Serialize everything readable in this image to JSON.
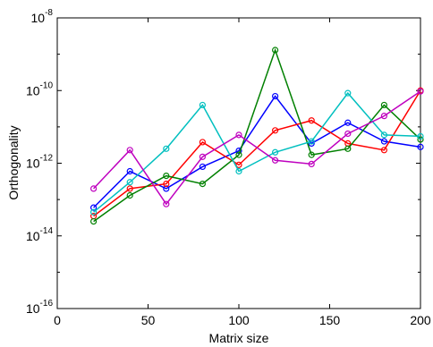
{
  "chart_data": {
    "type": "line",
    "title": "",
    "xlabel": "Matrix size",
    "ylabel": "Orthogonality",
    "xlim": [
      0,
      200
    ],
    "ylim_exponent": [
      -16,
      -8
    ],
    "yscale": "log",
    "grid": false,
    "legend": "none",
    "x_ticks": [
      "0",
      "50",
      "100",
      "150",
      "200"
    ],
    "y_ticks": [
      {
        "base": "10",
        "exp": "-16"
      },
      {
        "base": "10",
        "exp": "-14"
      },
      {
        "base": "10",
        "exp": "-12"
      },
      {
        "base": "10",
        "exp": "-10"
      },
      {
        "base": "10",
        "exp": "-8"
      }
    ],
    "x": [
      20,
      40,
      60,
      80,
      100,
      120,
      140,
      160,
      180,
      200
    ],
    "series": [
      {
        "color": "#0000ff",
        "values": [
          6e-14,
          6e-13,
          2e-13,
          8e-13,
          2.2e-12,
          7e-11,
          3.5e-12,
          1.3e-11,
          4e-12,
          2.8e-12
        ]
      },
      {
        "color": "#ff0000",
        "values": [
          3.5e-14,
          2e-13,
          2.7e-13,
          3.8e-12,
          9e-13,
          8e-12,
          1.5e-11,
          3.5e-12,
          2.3e-12,
          1e-10
        ]
      },
      {
        "color": "#008000",
        "values": [
          2.5e-14,
          1.3e-13,
          4.5e-13,
          2.7e-13,
          1.7e-12,
          1.3e-09,
          1.7e-12,
          2.5e-12,
          4e-11,
          4.5e-12
        ]
      },
      {
        "color": "#00bfbf",
        "values": [
          4.5e-14,
          3e-13,
          2.5e-12,
          4e-11,
          6e-13,
          2e-12,
          4e-12,
          8.5e-11,
          6e-12,
          5.5e-12
        ]
      },
      {
        "color": "#bf00bf",
        "values": [
          2e-13,
          2.3e-12,
          7.5e-14,
          1.5e-12,
          6e-12,
          1.2e-12,
          9.5e-13,
          6.5e-12,
          2e-11,
          9.5e-11
        ]
      }
    ]
  }
}
